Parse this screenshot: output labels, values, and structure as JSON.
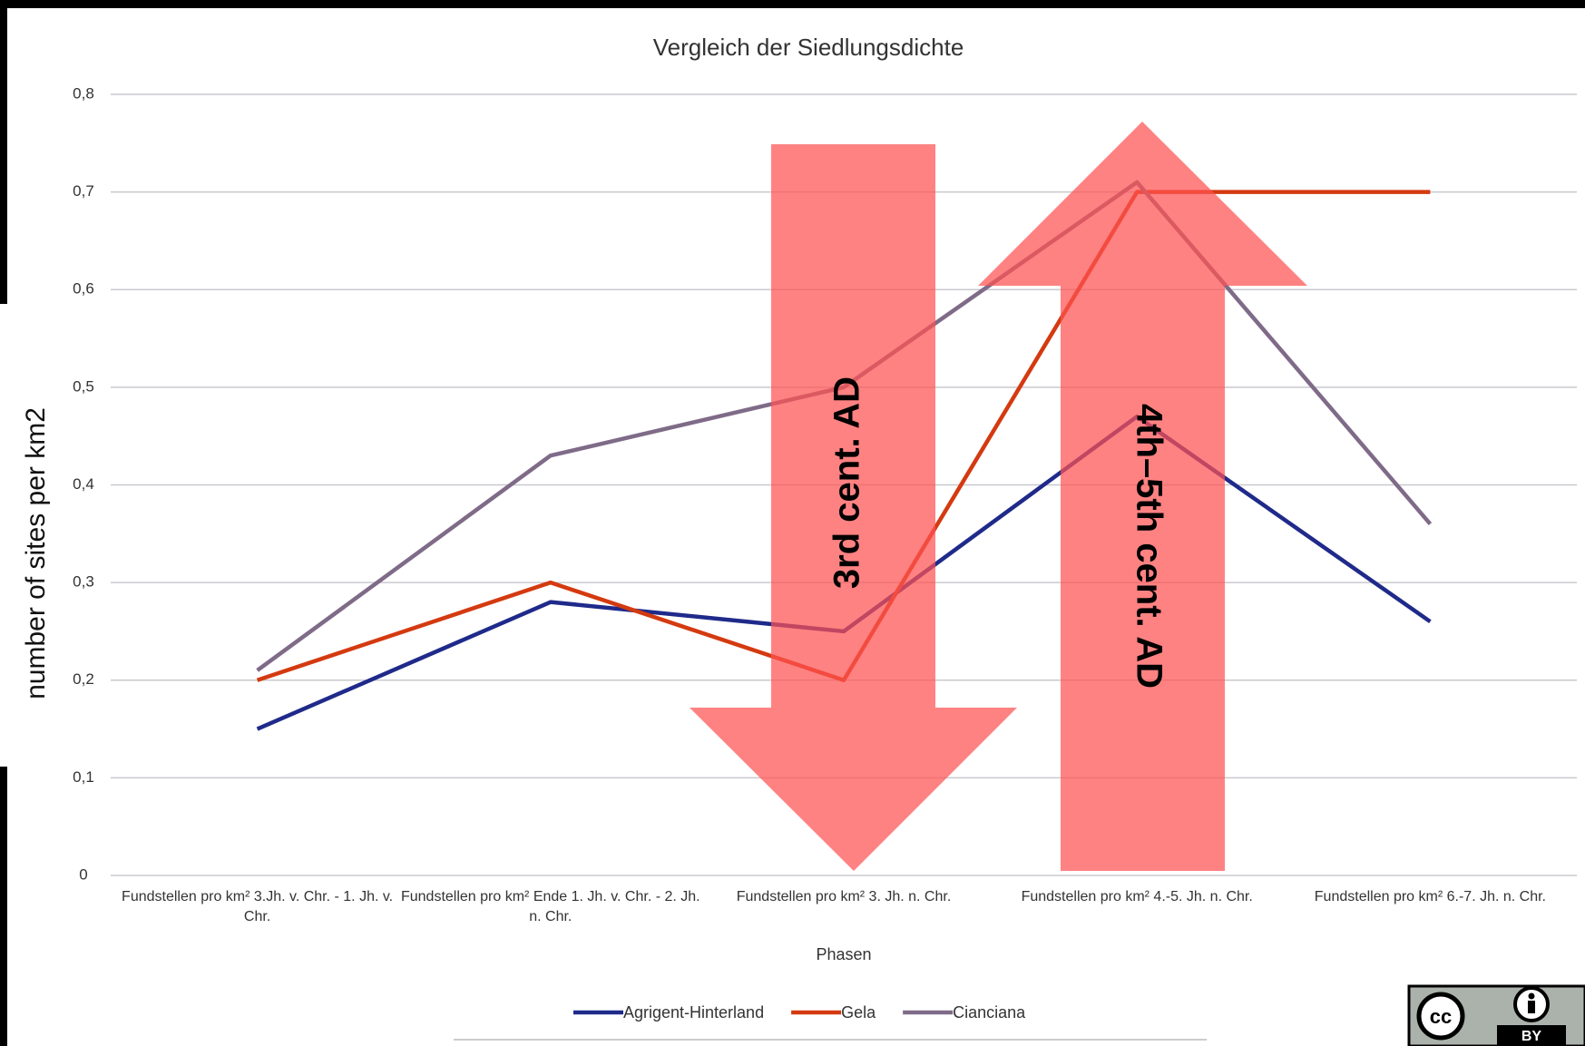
{
  "chart_data": {
    "type": "line",
    "title": "Vergleich der Siedlungsdichte",
    "x_label": "Phasen",
    "y_label": "number of sites per km2",
    "categories": [
      "Fundstellen pro km² 3.Jh. v. Chr. - 1. Jh. v. Chr.",
      "Fundstellen pro km² Ende 1. Jh. v. Chr. - 2. Jh. n. Chr.",
      "Fundstellen pro km² 3. Jh. n. Chr.",
      "Fundstellen pro km² 4.-5. Jh. n. Chr.",
      "Fundstellen pro km² 6.-7. Jh. n. Chr."
    ],
    "series": [
      {
        "name": "Agrigent-Hinterland",
        "color": "#1f2a8a",
        "values": [
          0.15,
          0.28,
          0.25,
          0.47,
          0.26
        ]
      },
      {
        "name": "Gela",
        "color": "#d43a10",
        "values": [
          0.2,
          0.3,
          0.2,
          0.7,
          0.7
        ]
      },
      {
        "name": "Cianciana",
        "color": "#7f6b88",
        "values": [
          0.21,
          0.43,
          0.5,
          0.71,
          0.36
        ]
      }
    ],
    "ylim": [
      0,
      0.8
    ],
    "yticks": [
      0,
      {
        "value": 0.1,
        "label": "0,1"
      },
      {
        "value": 0.2,
        "label": "0,2"
      },
      {
        "value": 0.3,
        "label": "0,3"
      },
      {
        "value": 0.4,
        "label": "0,4"
      },
      {
        "value": 0.5,
        "label": "0,5"
      },
      {
        "value": 0.6,
        "label": "0,6"
      },
      {
        "value": 0.7,
        "label": "0,7"
      },
      {
        "value": 0.8,
        "label": "0,8"
      }
    ],
    "grid": true,
    "legend": "bottom",
    "annotations": [
      "3rd cent. AD",
      "4th–5th cent. AD"
    ],
    "badge": "BY"
  }
}
